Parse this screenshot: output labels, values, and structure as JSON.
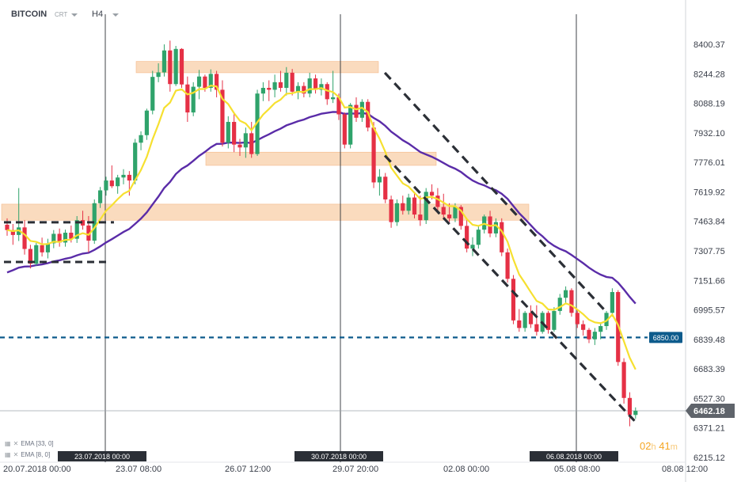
{
  "header": {
    "symbol": "BITCOIN",
    "source": "CRT",
    "timeframe": "H4"
  },
  "indicators": [
    {
      "name": "EMA",
      "params": "[33, 0]"
    },
    {
      "name": "EMA",
      "params": "[8, 0]"
    }
  ],
  "countdown": {
    "hours": "02",
    "hours_unit": "h",
    "minutes": "41",
    "minutes_unit": "m"
  },
  "colors": {
    "bull": "#2fa36b",
    "bear": "#e53045",
    "ema_fast": "#f6e030",
    "ema_slow": "#5a2ca8",
    "zone": "#f8c79b",
    "level": "#0d5b8c",
    "channel": "#2b2f36"
  },
  "chart_data": {
    "type": "candlestick",
    "title": "BITCOIN",
    "timeframe": "H4",
    "y_ticks": [
      "8400.37",
      "8244.28",
      "8088.19",
      "7932.10",
      "7776.01",
      "7619.92",
      "7463.84",
      "7307.75",
      "7151.66",
      "6995.57",
      "6839.48",
      "6683.39",
      "6527.30",
      "6371.21",
      "6215.12"
    ],
    "ylim": [
      6215.12,
      8465
    ],
    "x_ticks": [
      "20.07.2018   00:00",
      "23.07  08:00",
      "26.07  12:00",
      "29.07  20:00",
      "02.08  00:00",
      "05.08  08:00",
      "08.08  12:00"
    ],
    "session_markers": [
      "23.07.2018 00:00",
      "30.07.2018 00:00",
      "06.08.2018 00:00"
    ],
    "candles": [
      [
        7446,
        7480,
        7388,
        7418
      ],
      [
        7418,
        7450,
        7340,
        7392
      ],
      [
        7392,
        7640,
        7360,
        7432
      ],
      [
        7432,
        7470,
        7288,
        7318
      ],
      [
        7318,
        7340,
        7215,
        7240
      ],
      [
        7240,
        7350,
        7230,
        7338
      ],
      [
        7338,
        7378,
        7278,
        7300
      ],
      [
        7300,
        7372,
        7268,
        7348
      ],
      [
        7348,
        7418,
        7322,
        7398
      ],
      [
        7398,
        7426,
        7330,
        7352
      ],
      [
        7352,
        7420,
        7330,
        7404
      ],
      [
        7404,
        7442,
        7352,
        7372
      ],
      [
        7372,
        7492,
        7350,
        7470
      ],
      [
        7470,
        7520,
        7420,
        7442
      ],
      [
        7442,
        7492,
        7300,
        7362
      ],
      [
        7362,
        7580,
        7345,
        7560
      ],
      [
        7560,
        7646,
        7535,
        7628
      ],
      [
        7628,
        7700,
        7600,
        7680
      ],
      [
        7680,
        7760,
        7640,
        7650
      ],
      [
        7650,
        7710,
        7610,
        7696
      ],
      [
        7696,
        7740,
        7660,
        7710
      ],
      [
        7710,
        7730,
        7600,
        7680
      ],
      [
        7680,
        7900,
        7660,
        7880
      ],
      [
        7880,
        7940,
        7840,
        7920
      ],
      [
        7920,
        8060,
        7895,
        8050
      ],
      [
        8050,
        8260,
        8030,
        8228
      ],
      [
        8228,
        8300,
        8200,
        8252
      ],
      [
        8252,
        8400,
        8230,
        8368
      ],
      [
        8368,
        8420,
        8150,
        8190
      ],
      [
        8190,
        8392,
        8180,
        8376
      ],
      [
        8376,
        8380,
        8170,
        8188
      ],
      [
        8188,
        8230,
        7990,
        8040
      ],
      [
        8040,
        8200,
        8020,
        8176
      ],
      [
        8176,
        8265,
        8110,
        8230
      ],
      [
        8230,
        8240,
        8150,
        8170
      ],
      [
        8170,
        8268,
        8150,
        8244
      ],
      [
        8244,
        8260,
        8120,
        8160
      ],
      [
        8160,
        8210,
        7860,
        7880
      ],
      [
        7880,
        8020,
        7850,
        7990
      ],
      [
        7990,
        8040,
        7830,
        7870
      ],
      [
        7870,
        7900,
        7810,
        7855
      ],
      [
        7855,
        7960,
        7800,
        7930
      ],
      [
        7930,
        7990,
        7800,
        7820
      ],
      [
        7820,
        8160,
        7810,
        8140
      ],
      [
        8140,
        8200,
        8100,
        8170
      ],
      [
        8170,
        8210,
        8100,
        8160
      ],
      [
        8160,
        8240,
        8120,
        8200
      ],
      [
        8200,
        8260,
        8150,
        8170
      ],
      [
        8170,
        8280,
        8130,
        8250
      ],
      [
        8250,
        8270,
        8130,
        8150
      ],
      [
        8150,
        8200,
        8110,
        8180
      ],
      [
        8180,
        8200,
        8120,
        8140
      ],
      [
        8140,
        8250,
        8120,
        8220
      ],
      [
        8220,
        8240,
        8140,
        8160
      ],
      [
        8160,
        8220,
        8130,
        8190
      ],
      [
        8190,
        8200,
        8080,
        8110
      ],
      [
        8110,
        8260,
        8090,
        8120
      ],
      [
        8120,
        8140,
        8000,
        8030
      ],
      [
        8030,
        8040,
        7850,
        7870
      ],
      [
        7870,
        8090,
        7850,
        8080
      ],
      [
        8080,
        8120,
        7990,
        8012
      ],
      [
        8012,
        8110,
        7990,
        8096
      ],
      [
        8096,
        8110,
        7940,
        7960
      ],
      [
        7960,
        7990,
        7640,
        7670
      ],
      [
        7670,
        7740,
        7600,
        7700
      ],
      [
        7700,
        7720,
        7560,
        7580
      ],
      [
        7580,
        7600,
        7430,
        7460
      ],
      [
        7460,
        7580,
        7440,
        7560
      ],
      [
        7560,
        7600,
        7500,
        7520
      ],
      [
        7520,
        7610,
        7500,
        7590
      ],
      [
        7590,
        7620,
        7480,
        7500
      ],
      [
        7500,
        7600,
        7440,
        7470
      ],
      [
        7470,
        7640,
        7450,
        7620
      ],
      [
        7620,
        7660,
        7580,
        7600
      ],
      [
        7600,
        7640,
        7520,
        7540
      ],
      [
        7540,
        7610,
        7480,
        7500
      ],
      [
        7500,
        7560,
        7460,
        7480
      ],
      [
        7480,
        7560,
        7460,
        7540
      ],
      [
        7540,
        7550,
        7420,
        7440
      ],
      [
        7440,
        7470,
        7300,
        7320
      ],
      [
        7320,
        7380,
        7280,
        7340
      ],
      [
        7340,
        7440,
        7320,
        7420
      ],
      [
        7420,
        7500,
        7400,
        7490
      ],
      [
        7490,
        7520,
        7380,
        7400
      ],
      [
        7400,
        7480,
        7380,
        7460
      ],
      [
        7460,
        7480,
        7280,
        7300
      ],
      [
        7300,
        7320,
        7140,
        7160
      ],
      [
        7160,
        7180,
        6920,
        6940
      ],
      [
        6940,
        7000,
        6880,
        6900
      ],
      [
        6900,
        6990,
        6880,
        6980
      ],
      [
        6980,
        7020,
        6900,
        6920
      ],
      [
        6920,
        7020,
        6860,
        6880
      ],
      [
        6880,
        6990,
        6870,
        6980
      ],
      [
        6980,
        6990,
        6870,
        6890
      ],
      [
        6890,
        7010,
        6880,
        6990
      ],
      [
        6990,
        7080,
        6970,
        7060
      ],
      [
        7060,
        7120,
        7030,
        7100
      ],
      [
        7100,
        7110,
        6960,
        6980
      ],
      [
        6980,
        7000,
        6900,
        6920
      ],
      [
        6920,
        6940,
        6860,
        6890
      ],
      [
        6890,
        6900,
        6820,
        6840
      ],
      [
        6840,
        6900,
        6810,
        6880
      ],
      [
        6880,
        6930,
        6840,
        6910
      ],
      [
        6910,
        6990,
        6890,
        6980
      ],
      [
        6980,
        7110,
        6960,
        7090
      ],
      [
        7090,
        7100,
        6700,
        6720
      ],
      [
        6720,
        6740,
        6500,
        6530
      ],
      [
        6530,
        6560,
        6380,
        6440
      ],
      [
        6440,
        6480,
        6420,
        6462
      ]
    ],
    "ema_fast_label": "EMA [8, 0]",
    "ema_slow_label": "EMA [33, 0]",
    "zones": [
      [
        8250,
        8310
      ],
      [
        7760,
        7830
      ],
      [
        7470,
        7555
      ]
    ],
    "horizontal_level": {
      "value": 6850.0,
      "label": "6850.00"
    },
    "current_price": {
      "value": 6462.18,
      "label": "6462.18"
    },
    "channel": {
      "upper_from": [
        66,
        8250
      ],
      "upper_to": [
        102,
        6999
      ],
      "lower_from": [
        66,
        7812
      ],
      "lower_to": [
        107,
        6409
      ]
    },
    "box": {
      "top": 7459,
      "bottom": 7249,
      "from": 0,
      "to": 17
    },
    "grid": false,
    "legend": "bottom-left"
  }
}
